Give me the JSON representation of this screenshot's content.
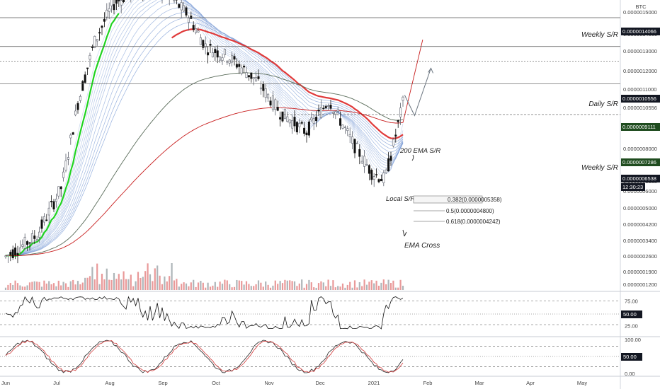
{
  "colors": {
    "background": "#f0f3fa",
    "axis_bg": "#ffffff",
    "up_candle": "#5b5f6b",
    "down_candle": "#111111",
    "ema200": "#e03a3a",
    "ema_fast": "#20d320",
    "ema_ribbon": "#6a8fd0",
    "sma_red": "#c81d1d",
    "long_ma_gray": "#5b6d5b",
    "label_green_bg": "#1f4c1f",
    "label_black_bg": "#131722",
    "rsi_line": "#111111",
    "stoch_k": "#222222",
    "stoch_d": "#d23b3b",
    "volume_red": "#e47f7f",
    "volume_gray": "#9aa2a6"
  },
  "header": {
    "currency": "BTC",
    "top_tick": "0.0000015000"
  },
  "price_axis": {
    "ticks": [
      "0.0000014066",
      "0.0000013000",
      "0.0000012000",
      "0.0000011000",
      "0.0000010556",
      "0.0000009111",
      "0.0000008000",
      "0.0000007286",
      "0.0000006538",
      "0.0000006000",
      "0.0000005000",
      "0.0000004200",
      "0.0000003400",
      "0.0000002600",
      "0.0000001900",
      "0.0000001200"
    ],
    "badges": [
      {
        "text": "0.0000014066",
        "style": "black"
      },
      {
        "text": "0.0000010556",
        "style": "black"
      },
      {
        "text": "0.0000009111",
        "style": "green"
      },
      {
        "text": "0.0000007286",
        "style": "green"
      },
      {
        "text": "0.0000006538",
        "style": "black"
      },
      {
        "text": "12:30:23",
        "style": "black"
      }
    ]
  },
  "annotations": {
    "weekly_sr_top": "Weekly S/R",
    "daily_sr": "Daily S/R",
    "weekly_sr_mid": "Weekly S/R",
    "ema200": "200 EMA S/R",
    "local_sr": "Local S/R",
    "ema_cross": "EMA Cross",
    "fib_0382": "0.382(0.0000005358)",
    "fib_05": "0.5(0.0000004800)",
    "fib_0618": "0.618(0.0000004242)"
  },
  "rsi": {
    "ticks": [
      "75.00",
      "50.00",
      "25.00"
    ],
    "badge": "50.00"
  },
  "stoch": {
    "ticks": [
      "100.00",
      "50.00",
      "0.00"
    ],
    "badge": "50.00"
  },
  "time_axis": [
    "Jun",
    "Jul",
    "Aug",
    "Sep",
    "Oct",
    "Nov",
    "Dec",
    "2021",
    "Feb",
    "Mar",
    "Apr",
    "May"
  ],
  "chart_data": {
    "type": "candlestick",
    "symbol_quote": "BTC",
    "price_range": [
      1e-07,
      1.52e-06
    ],
    "time_range": [
      "2020-06-01",
      "2021-05-31"
    ],
    "levels": [
      {
        "label": "Weekly S/R",
        "price": 1.4066e-06
      },
      {
        "label": "Daily S/R",
        "price": 1.0556e-06
      },
      {
        "label": "",
        "price": 9.111e-07
      },
      {
        "label": "Weekly S/R",
        "price": 7.286e-07
      }
    ],
    "fibonacci": [
      {
        "ratio": 0.382,
        "price": 5.358e-07
      },
      {
        "ratio": 0.5,
        "price": 4.8e-07
      },
      {
        "ratio": 0.618,
        "price": 4.242e-07
      }
    ],
    "last_price": 6.538e-07,
    "price_path_keyframes": [
      {
        "date": "2020-06-01",
        "price": 1.3e-07
      },
      {
        "date": "2020-06-20",
        "price": 1.6e-07
      },
      {
        "date": "2020-07-05",
        "price": 2.6e-07
      },
      {
        "date": "2020-07-15",
        "price": 6e-07
      },
      {
        "date": "2020-07-25",
        "price": 1.1e-06
      },
      {
        "date": "2020-08-05",
        "price": 1.6e-06
      },
      {
        "date": "2020-08-20",
        "price": 1.9e-06
      },
      {
        "date": "2020-09-05",
        "price": 1.85e-06
      },
      {
        "date": "2020-09-20",
        "price": 1.45e-06
      },
      {
        "date": "2020-10-01",
        "price": 1.05e-06
      },
      {
        "date": "2020-10-15",
        "price": 9.5e-07
      },
      {
        "date": "2020-11-01",
        "price": 7.5e-07
      },
      {
        "date": "2020-11-15",
        "price": 5.5e-07
      },
      {
        "date": "2020-12-01",
        "price": 4.5e-07
      },
      {
        "date": "2020-12-15",
        "price": 6.2e-07
      },
      {
        "date": "2020-12-28",
        "price": 4.2e-07
      },
      {
        "date": "2021-01-10",
        "price": 3e-07
      },
      {
        "date": "2021-01-18",
        "price": 2.8e-07
      },
      {
        "date": "2021-01-25",
        "price": 4.5e-07
      },
      {
        "date": "2021-01-30",
        "price": 6.5e-07
      }
    ],
    "projection": [
      {
        "date": "2021-01-30",
        "price": 6.5e-07
      },
      {
        "date": "2021-02-05",
        "price": 5.3e-07
      },
      {
        "date": "2021-02-15",
        "price": 8.5e-07
      }
    ]
  }
}
